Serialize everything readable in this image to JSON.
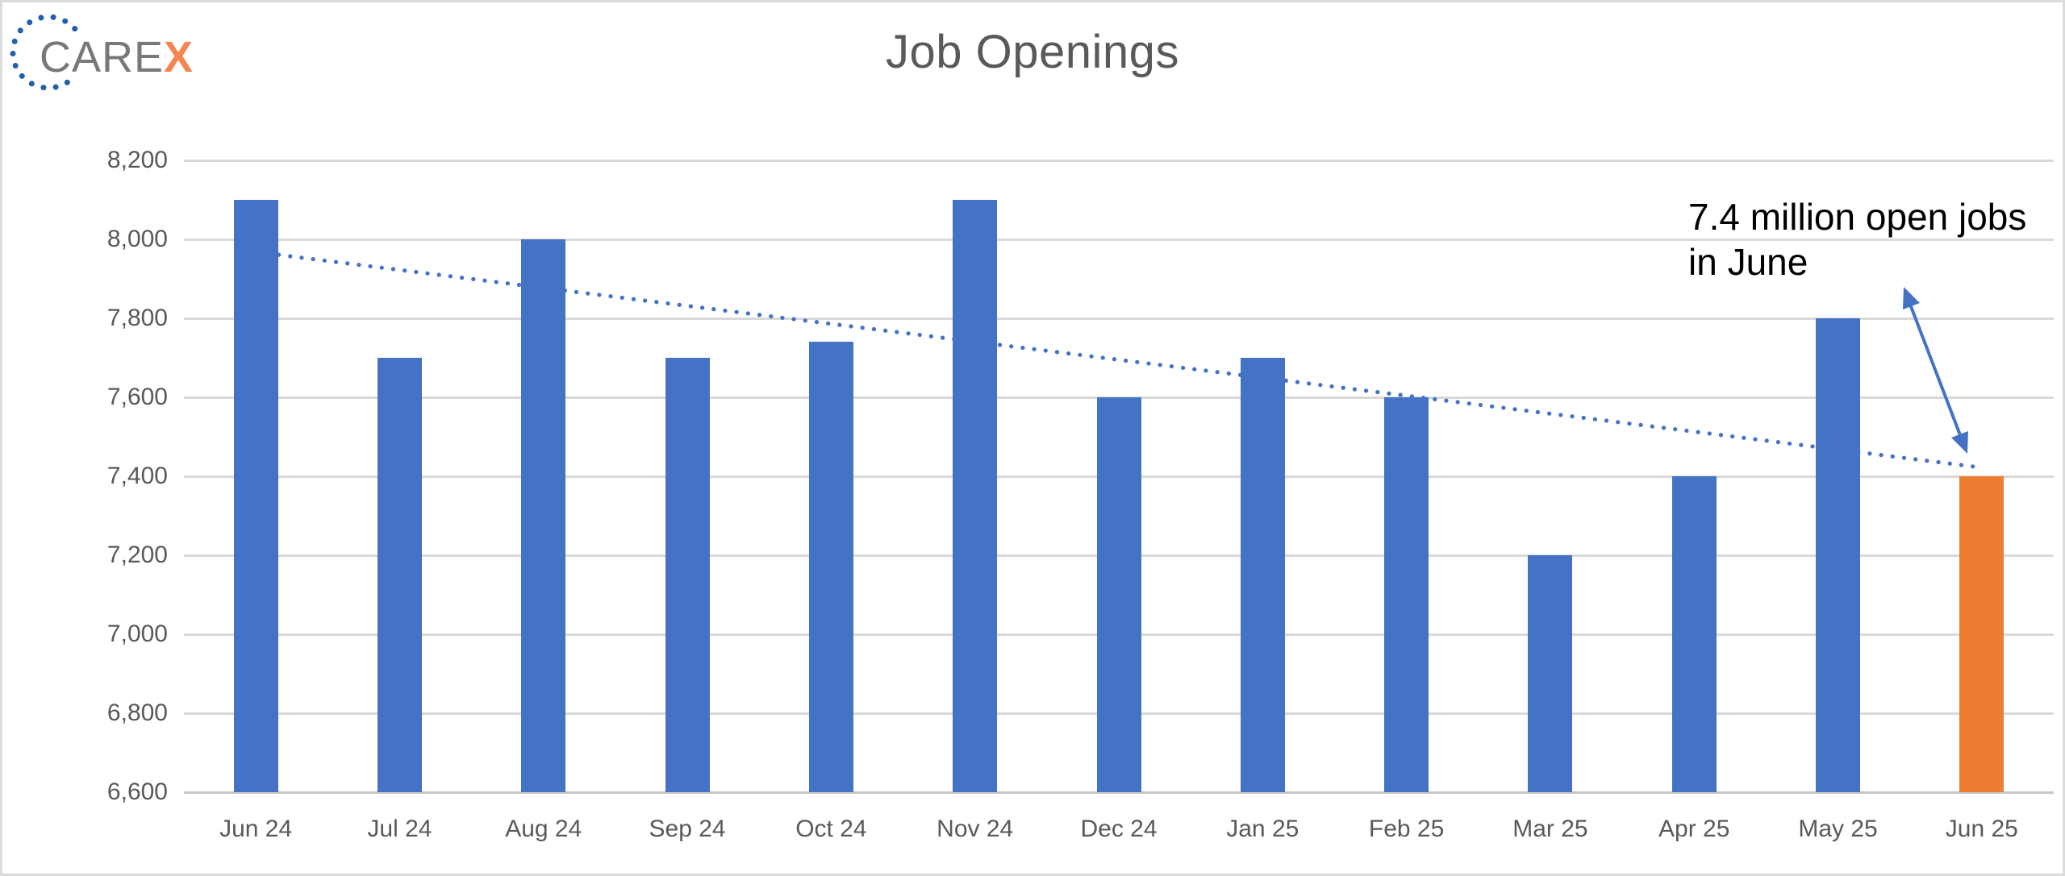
{
  "logo": {
    "text_gray": "CARE",
    "text_accent": "X"
  },
  "header": {
    "title": "Job Openings"
  },
  "annotation": {
    "line1": "7.4 million open jobs",
    "line2": "in June"
  },
  "chart_data": {
    "type": "bar",
    "title": "Job Openings",
    "xlabel": "",
    "ylabel": "",
    "categories": [
      "Jun 24",
      "Jul 24",
      "Aug 24",
      "Sep 24",
      "Oct 24",
      "Nov 24",
      "Dec 24",
      "Jan 25",
      "Feb 25",
      "Mar 25",
      "Apr 25",
      "May 25",
      "Jun 25"
    ],
    "values": [
      8100,
      7700,
      8000,
      7700,
      7740,
      8100,
      7600,
      7700,
      7600,
      7200,
      7400,
      7800,
      7400
    ],
    "highlight_index": 12,
    "ylim": [
      6600,
      8200
    ],
    "ytick_step": 200,
    "ytick_labels": [
      "6,600",
      "6,800",
      "7,000",
      "7,200",
      "7,400",
      "7,600",
      "7,800",
      "8,000",
      "8,200"
    ],
    "grid": true,
    "legend": "none",
    "trendline": {
      "type": "linear",
      "style": "dotted",
      "start_value": 7968,
      "end_value": 7422
    },
    "colors": {
      "bar": "#4472C4",
      "highlight_bar": "#ED7D31",
      "trendline": "#4472C4",
      "arrow": "#4472C4",
      "gridline": "#D9D9D9",
      "axis_line": "#C8C8C8",
      "axis_text": "#595959",
      "title_text": "#595959",
      "annotation_text": "#000000",
      "logo_dots": "#1F5FAD",
      "logo_gray": "#77787B",
      "logo_accent": "#F5854F"
    }
  }
}
